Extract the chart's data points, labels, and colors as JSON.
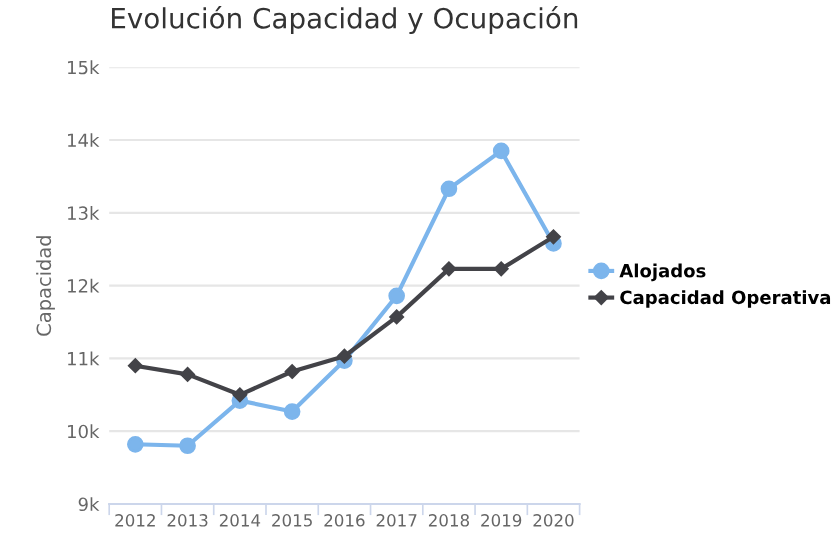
{
  "chart_data": {
    "type": "line",
    "title": "Evolución Capacidad y Ocupación",
    "ylabel": "Capacidad",
    "categories": [
      "2012",
      "2013",
      "2014",
      "2015",
      "2016",
      "2017",
      "2018",
      "2019",
      "2020"
    ],
    "series": [
      {
        "name": "Alojados",
        "color": "#7cb5ec",
        "marker": "circle",
        "values": [
          9820,
          9800,
          10420,
          10270,
          10970,
          11860,
          13330,
          13850,
          12580
        ]
      },
      {
        "name": "Capacidad Operativa",
        "color": "#434348",
        "marker": "diamond",
        "values": [
          10900,
          10780,
          10500,
          10820,
          11030,
          11570,
          12230,
          12230,
          12670
        ]
      }
    ],
    "ylim": [
      9000,
      15000
    ],
    "yticks": [
      {
        "value": 9000,
        "label": "9k"
      },
      {
        "value": 10000,
        "label": "10k"
      },
      {
        "value": 11000,
        "label": "11k"
      },
      {
        "value": 12000,
        "label": "12k"
      },
      {
        "value": 13000,
        "label": "13k"
      },
      {
        "value": 14000,
        "label": "14k"
      },
      {
        "value": 15000,
        "label": "15k"
      }
    ],
    "grid": "y",
    "legend": "right",
    "line_style": "solid"
  }
}
